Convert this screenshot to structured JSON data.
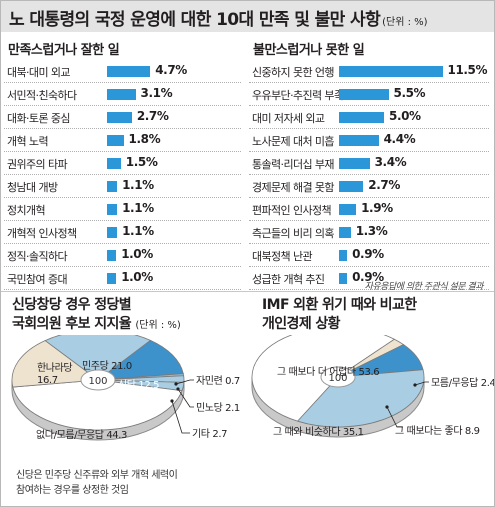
{
  "header": {
    "title": "노 대통령의 국정 운영에 대한 10대 만족 및 불만 사항",
    "unit": "(단위 : %)"
  },
  "satisfied": {
    "title": "만족스럽거나 잘한 일"
  },
  "dissatisfied": {
    "title": "불만스럽거나 못한 일"
  },
  "source_note": "자유응답에 의한 주관식 설문 결과",
  "party_support": {
    "title_line1": "신당창당 경우 정당별",
    "title_line2": "국회의원 후보 지지율",
    "unit": "(단위 : %)",
    "center_label": "100",
    "footnote_line1": "신당은 민주당 신주류와 외부 개혁 세력이",
    "footnote_line2": "참여하는 경우를 상정한 것임"
  },
  "economy": {
    "title_line1": "IMF 외환 위기 때와 비교한",
    "title_line2": "개인경제 상황",
    "center_label": "100"
  },
  "colors": {
    "bar": "#2b96d8",
    "pie_light_blue": "#a9cde3",
    "pie_blue": "#3d92cc",
    "pie_beige": "#eee3cf",
    "pie_white": "#ffffff",
    "pie_rim": "#8a8a8a",
    "title_bar": "#e4e4e4"
  },
  "chart_data": [
    {
      "type": "bar",
      "orientation": "horizontal",
      "title": "만족스럽거나 잘한 일",
      "unit": "%",
      "categories": [
        "대북·대미 외교",
        "서민적·친숙하다",
        "대화·토론 중심",
        "개혁 노력",
        "권위주의 타파",
        "청남대 개방",
        "정치개혁",
        "개혁적 인사정책",
        "정직·솔직하다",
        "국민참여 증대"
      ],
      "values": [
        4.7,
        3.1,
        2.7,
        1.8,
        1.5,
        1.1,
        1.1,
        1.1,
        1.0,
        1.0
      ],
      "value_labels": [
        "4.7%",
        "3.1%",
        "2.7%",
        "1.8%",
        "1.5%",
        "1.1%",
        "1.1%",
        "1.1%",
        "1.0%",
        "1.0%"
      ]
    },
    {
      "type": "bar",
      "orientation": "horizontal",
      "title": "불만스럽거나 못한 일",
      "unit": "%",
      "categories": [
        "신중하지 못한 언행",
        "우유부단·추진력 부족",
        "대미 저자세 외교",
        "노사문제 대처 미흡",
        "통솔력·리더십 부재",
        "경제문제 해결 못함",
        "편파적인 인사정책",
        "측근들의 비리 의혹",
        "대북정책 난관",
        "성급한 개혁 추진"
      ],
      "values": [
        11.5,
        5.5,
        5.0,
        4.4,
        3.4,
        2.7,
        1.9,
        1.3,
        0.9,
        0.9
      ],
      "value_labels": [
        "11.5%",
        "5.5%",
        "5.0%",
        "4.4%",
        "3.4%",
        "2.7%",
        "1.9%",
        "1.3%",
        "0.9%",
        "0.9%"
      ]
    },
    {
      "type": "pie",
      "title": "신당창당 경우 정당별 국회의원 후보 지지율",
      "unit": "%",
      "total_label": "100",
      "slices": [
        {
          "label": "민주당",
          "value": 21.0,
          "value_label": "21.0",
          "color": "#a9cde3"
        },
        {
          "label": "신당",
          "value": 12.5,
          "value_label": "12.5",
          "color": "#3d92cc"
        },
        {
          "label": "자민련",
          "value": 0.7,
          "value_label": "0.7",
          "color": "#8fb8d6"
        },
        {
          "label": "민노당",
          "value": 2.1,
          "value_label": "2.1",
          "color": "#a9cde3"
        },
        {
          "label": "기타",
          "value": 2.7,
          "value_label": "2.7",
          "color": "#a9cde3"
        },
        {
          "label": "없다/모름/무응답",
          "value": 44.3,
          "value_label": "44.3",
          "color": "#ffffff"
        },
        {
          "label": "한나라당",
          "value": 16.7,
          "value_label": "16.7",
          "color": "#eee3cf"
        }
      ]
    },
    {
      "type": "pie",
      "title": "IMF 외환 위기 때와 비교한 개인경제 상황",
      "unit": "%",
      "total_label": "100",
      "slices": [
        {
          "label": "그 때보다 더 어렵다",
          "value": 53.6,
          "value_label": "53.6",
          "color": "#ffffff"
        },
        {
          "label": "모름/무응답",
          "value": 2.4,
          "value_label": "2.4",
          "color": "#eee3cf"
        },
        {
          "label": "그 때보다는 좋다",
          "value": 8.9,
          "value_label": "8.9",
          "color": "#3d92cc"
        },
        {
          "label": "그 때와 비슷하다",
          "value": 35.1,
          "value_label": "35.1",
          "color": "#a9cde3"
        }
      ]
    }
  ]
}
